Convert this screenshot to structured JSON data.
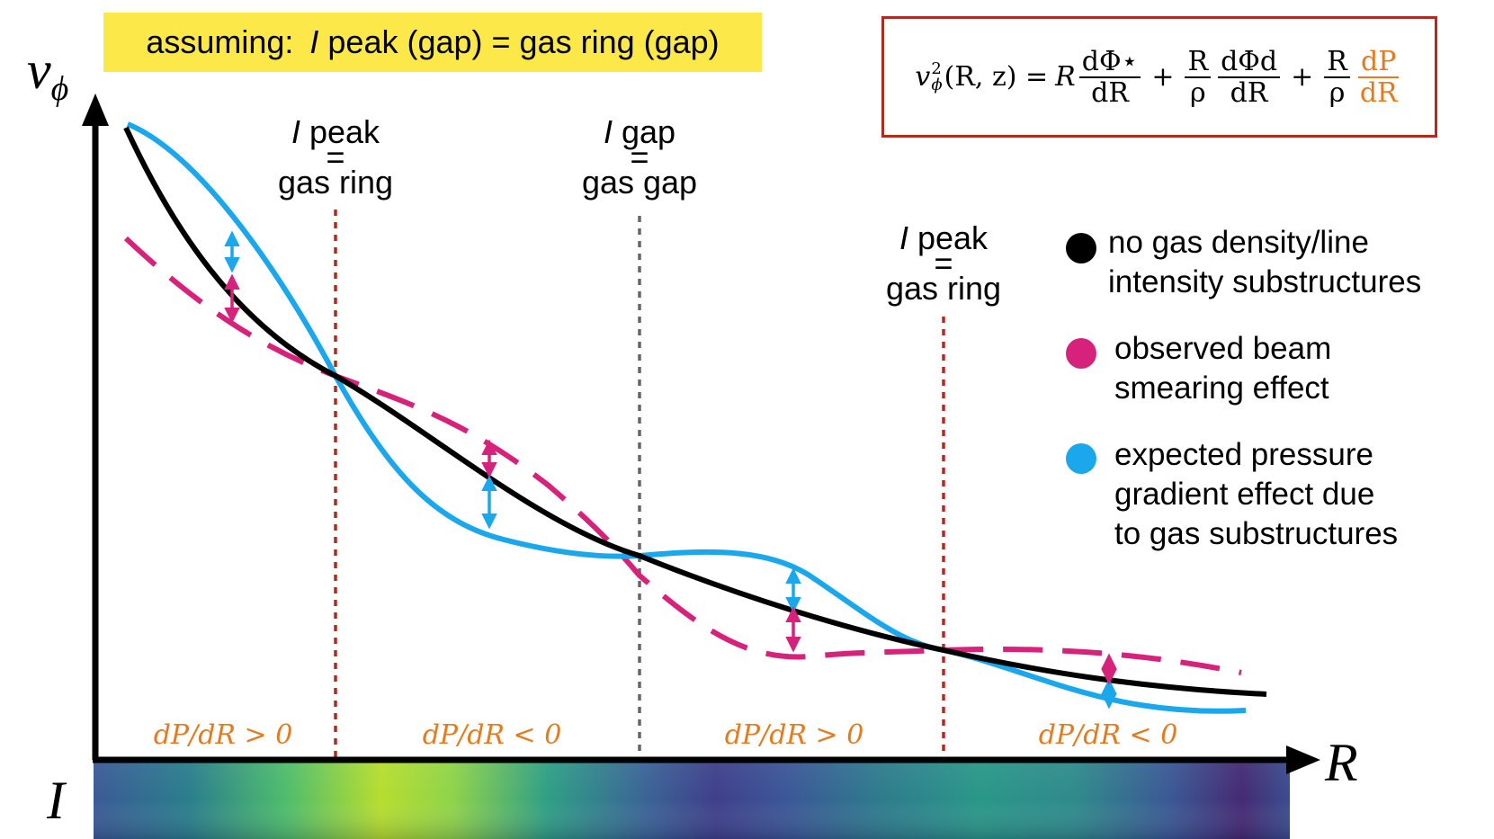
{
  "annotation": {
    "prefix": "assuming: ",
    "italic": "I",
    "rest": " peak (gap) = gas ring (gap)"
  },
  "formula": {
    "lhs_v": "v",
    "lhs_sup": "2",
    "lhs_sub": "ϕ",
    "lhs_args": "(R, z) =",
    "t1_coef": "R",
    "t1_num": "dΦ⋆",
    "t1_den": "dR",
    "plus1": "+",
    "t2_num": "R",
    "t2_den": "ρ",
    "t2_num2": "dΦd",
    "t2_den2": "dR",
    "plus2": "+",
    "t3_num": "R",
    "t3_den": "ρ",
    "t3_num2": "dP",
    "t3_den2": "dR",
    "highlight_color": "#e57b1e"
  },
  "axes": {
    "y_symbol": "v",
    "y_sub": "ϕ",
    "x_symbol": "R",
    "intensity_symbol": "I"
  },
  "markers": [
    {
      "line1_italic": "I",
      "line1_rest": " peak",
      "line2": "=",
      "line3": "gas ring",
      "color": "#b22a1e"
    },
    {
      "line1_italic": "I",
      "line1_rest": " gap",
      "line2": "=",
      "line3": "gas gap",
      "color": "#666666"
    },
    {
      "line1_italic": "I",
      "line1_rest": " peak",
      "line2": "=",
      "line3": "gas ring",
      "color": "#b22a1e"
    }
  ],
  "region_labels": [
    "dP/dR > 0",
    "dP/dR < 0",
    "dP/dR > 0",
    "dP/dR < 0"
  ],
  "legend": [
    {
      "text": "no gas density/line\nintensity substructures",
      "color": "#000000"
    },
    {
      "text": "observed beam\nsmearing effect",
      "color": "#d6227a"
    },
    {
      "text": "expected pressure\ngradient effect due\nto gas substructures",
      "color": "#1aa7ec"
    }
  ],
  "colors": {
    "keplerian": "#000000",
    "observed": "#d6227a",
    "expected": "#1aa7ec",
    "region_text": "#e57b1e",
    "ring_line": "#b22a1e",
    "gap_line": "#666666",
    "annotation_bg": "#fde84a"
  }
}
